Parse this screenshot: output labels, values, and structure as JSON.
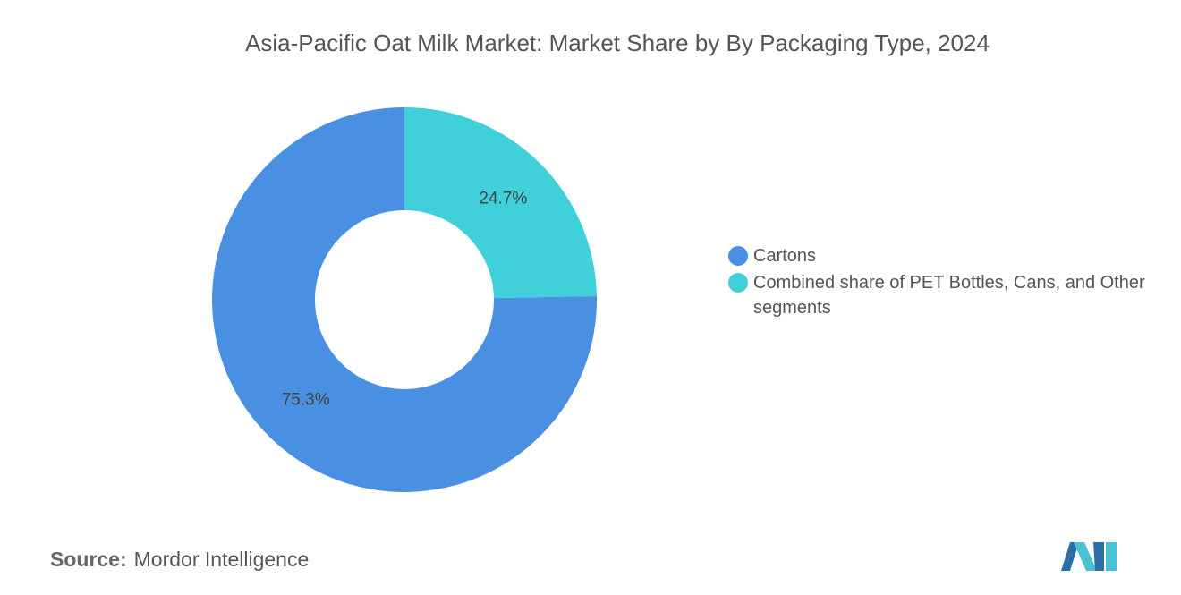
{
  "chart_data": {
    "type": "donut",
    "title": "Asia-Pacific Oat Milk Market: Market Share by By Packaging Type, 2024",
    "categories": [
      "Cartons",
      "Combined share of PET Bottles, Cans, and Other segments"
    ],
    "values": [
      75.3,
      24.7
    ],
    "value_labels": [
      "75.3%",
      "24.7%"
    ],
    "colors": [
      "#4a90e2",
      "#3fd0d9"
    ],
    "source_label": "Source:",
    "source": "Mordor Intelligence"
  }
}
